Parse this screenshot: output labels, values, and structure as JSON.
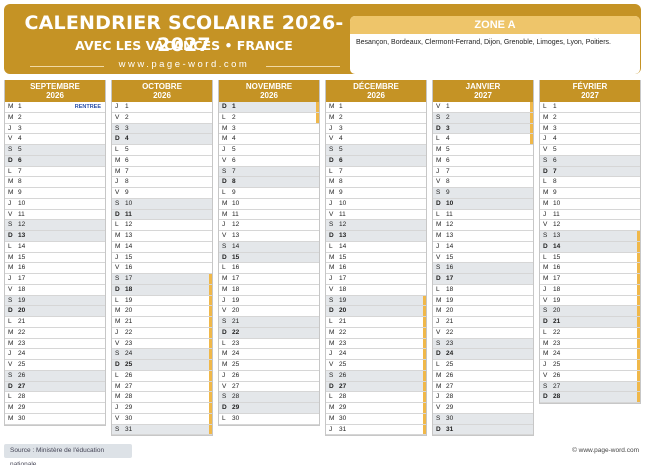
{
  "header": {
    "title": "CALENDRIER SCOLAIRE 2026-2027",
    "subtitle": "AVEC LES VACANCES • FRANCE",
    "website": "www.page-word.com"
  },
  "zone": {
    "title": "ZONE A",
    "cities": "Besançon, Bordeaux, Clermont-Ferrand, Dijon, Grenoble, Limoges, Lyon, Poitiers."
  },
  "colors": {
    "header": "#c59325",
    "zone_title": "#eec56a",
    "vacation_bar": "#f0b84a",
    "weekend_bg": "#e4e7ea",
    "note_text": "#2a4fa8"
  },
  "months": [
    {
      "name": "SEPTEMBRE",
      "year": "2026",
      "start_weekday": 1,
      "days": 30,
      "notes": {
        "1": "RENTREE"
      },
      "vacation_days": []
    },
    {
      "name": "OCTOBRE",
      "year": "2026",
      "start_weekday": 3,
      "days": 31,
      "notes": {},
      "vacation_days": [
        17,
        18,
        19,
        20,
        21,
        22,
        23,
        24,
        25,
        26,
        27,
        28,
        29,
        30,
        31
      ]
    },
    {
      "name": "NOVEMBRE",
      "year": "2026",
      "start_weekday": 6,
      "days": 30,
      "notes": {},
      "vacation_days": [
        1,
        2
      ]
    },
    {
      "name": "DÉCEMBRE",
      "year": "2026",
      "start_weekday": 1,
      "days": 31,
      "notes": {},
      "vacation_days": [
        19,
        20,
        21,
        22,
        23,
        24,
        25,
        26,
        27,
        28,
        29,
        30,
        31
      ]
    },
    {
      "name": "JANVIER",
      "year": "2027",
      "start_weekday": 4,
      "days": 31,
      "notes": {},
      "vacation_days": [
        1,
        2,
        3,
        4
      ]
    },
    {
      "name": "FÉVRIER",
      "year": "2027",
      "start_weekday": 0,
      "days": 28,
      "notes": {},
      "vacation_days": [
        13,
        14,
        15,
        16,
        17,
        18,
        19,
        20,
        21,
        22,
        23,
        24,
        25,
        26,
        27,
        28
      ]
    }
  ],
  "weekday_letters": [
    "L",
    "M",
    "M",
    "J",
    "V",
    "S",
    "D"
  ],
  "source": "Source : Ministère de l'éducation nationale",
  "copyright": "© www.page-word.com"
}
